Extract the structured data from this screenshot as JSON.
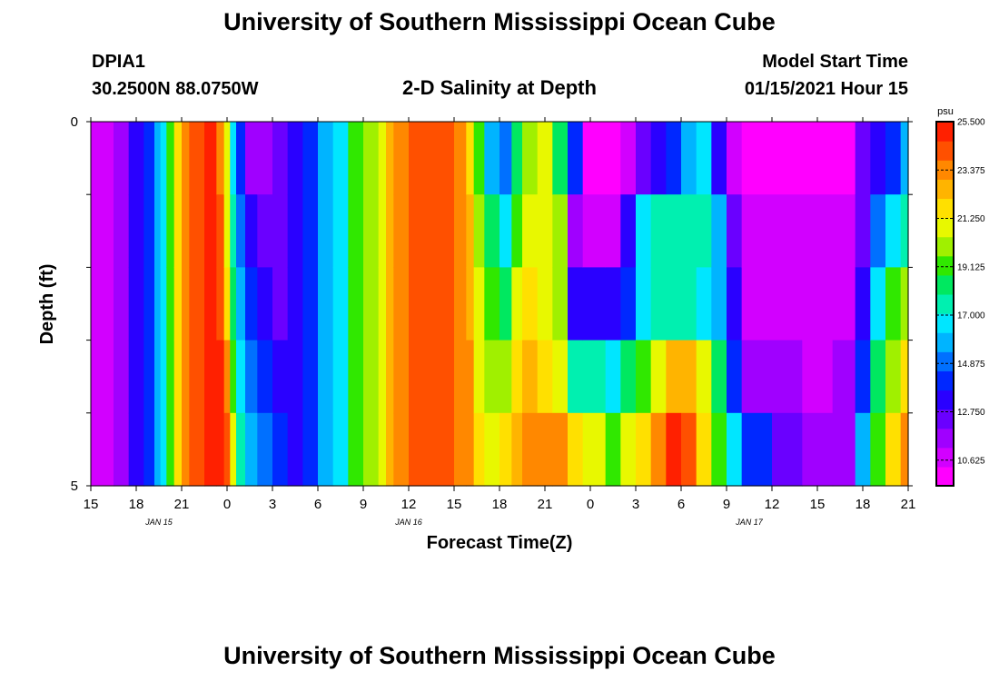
{
  "page": {
    "title_top": "University of Southern Mississippi Ocean Cube",
    "title_bottom": "University of Southern Mississippi Ocean Cube",
    "station_id": "DPIA1",
    "station_coords": "30.2500N 88.0750W",
    "model_label": "Model Start Time",
    "model_time": "01/15/2021 Hour 15"
  },
  "colors": {
    "palette": [
      "#ff00ff",
      "#d200ff",
      "#a000ff",
      "#6a00ff",
      "#2a00ff",
      "#0028ff",
      "#0070ff",
      "#00b4ff",
      "#00e6ff",
      "#00f0b0",
      "#00e860",
      "#30e800",
      "#a0f000",
      "#e8f800",
      "#ffe000",
      "#ffb400",
      "#ff8800",
      "#ff5000",
      "#ff2000"
    ]
  },
  "chart_data": {
    "type": "heatmap",
    "title": "2-D Salinity at Depth",
    "xlabel": "Forecast Time(Z)",
    "ylabel": "Depth (ft)",
    "x_unit": "hours since 01/15/2021 15Z",
    "x_range": [
      0,
      54
    ],
    "ylim": [
      0,
      5
    ],
    "y_ticks": [
      "0",
      "5"
    ],
    "x_ticks": [
      "15",
      "18",
      "21",
      "0",
      "3",
      "6",
      "9",
      "12",
      "15",
      "18",
      "21",
      "0",
      "3",
      "6",
      "9",
      "12",
      "15",
      "18",
      "21"
    ],
    "date_labels": [
      {
        "label": "JAN 15",
        "hour": 4.5
      },
      {
        "label": "JAN 16",
        "hour": 21
      },
      {
        "label": "JAN 17",
        "hour": 43.5
      }
    ],
    "colorbar": {
      "unit": "psu",
      "min": 9.5,
      "max": 25.5,
      "labels": [
        "25.500",
        "23.375",
        "21.250",
        "19.125",
        "17.000",
        "14.875",
        "12.750",
        "10.625"
      ]
    },
    "depth_bands": [
      0,
      1,
      2,
      3,
      4,
      5
    ],
    "columns": [
      {
        "x": 0,
        "v": [
          10.5,
          10.5,
          10.5,
          10.5,
          10.5
        ]
      },
      {
        "x": 1.5,
        "v": [
          11.5,
          11.5,
          11.5,
          11.5,
          11.5
        ]
      },
      {
        "x": 2.5,
        "v": [
          13.5,
          13.5,
          13.5,
          13.5,
          13.5
        ]
      },
      {
        "x": 3.5,
        "v": [
          14.2,
          14.2,
          14.2,
          14.2,
          14.2
        ]
      },
      {
        "x": 4.2,
        "v": [
          15.5,
          15.5,
          15.5,
          15.5,
          15.5
        ]
      },
      {
        "x": 4.6,
        "v": [
          17.0,
          17.0,
          17.0,
          17.0,
          17.0
        ]
      },
      {
        "x": 5.0,
        "v": [
          19.5,
          19.5,
          19.5,
          19.5,
          19.5
        ]
      },
      {
        "x": 5.5,
        "v": [
          21.5,
          21.5,
          21.5,
          21.5,
          21.5
        ]
      },
      {
        "x": 6.0,
        "v": [
          23.0,
          23.0,
          23.0,
          23.0,
          23.0
        ]
      },
      {
        "x": 6.5,
        "v": [
          24.5,
          24.5,
          24.5,
          24.5,
          24.5
        ]
      },
      {
        "x": 7.5,
        "v": [
          25.3,
          25.3,
          25.3,
          25.3,
          25.3
        ]
      },
      {
        "x": 8.3,
        "v": [
          23.5,
          24.0,
          24.5,
          25.0,
          25.3
        ]
      },
      {
        "x": 8.8,
        "v": [
          20.5,
          21.0,
          22.0,
          23.0,
          24.0
        ]
      },
      {
        "x": 9.2,
        "v": [
          16.5,
          17.5,
          18.5,
          19.5,
          20.5
        ]
      },
      {
        "x": 9.6,
        "v": [
          14.0,
          15.0,
          16.0,
          17.0,
          17.5
        ]
      },
      {
        "x": 10.2,
        "v": [
          12.0,
          13.5,
          14.5,
          15.0,
          16.0
        ]
      },
      {
        "x": 11.0,
        "v": [
          11.5,
          12.5,
          13.0,
          14.0,
          15.0
        ]
      },
      {
        "x": 12.0,
        "v": [
          12.5,
          12.5,
          12.5,
          13.5,
          14.0
        ]
      },
      {
        "x": 13.0,
        "v": [
          13.0,
          13.0,
          13.0,
          13.2,
          13.5
        ]
      },
      {
        "x": 14.0,
        "v": [
          14.2,
          14.2,
          14.2,
          14.2,
          14.2
        ]
      },
      {
        "x": 15.0,
        "v": [
          15.5,
          15.5,
          15.5,
          15.5,
          15.5
        ]
      },
      {
        "x": 16.0,
        "v": [
          17.0,
          17.0,
          17.0,
          17.0,
          17.0
        ]
      },
      {
        "x": 17.0,
        "v": [
          18.8,
          18.8,
          18.8,
          18.8,
          18.8
        ]
      },
      {
        "x": 18.0,
        "v": [
          19.8,
          19.8,
          19.8,
          19.8,
          19.8
        ]
      },
      {
        "x": 19.0,
        "v": [
          21.0,
          21.0,
          21.0,
          21.0,
          21.0
        ]
      },
      {
        "x": 19.5,
        "v": [
          22.2,
          22.2,
          22.2,
          22.2,
          22.2
        ]
      },
      {
        "x": 20.0,
        "v": [
          23.3,
          23.3,
          23.3,
          23.3,
          23.3
        ]
      },
      {
        "x": 21.0,
        "v": [
          24.0,
          24.0,
          24.0,
          24.0,
          24.0
        ]
      },
      {
        "x": 24.0,
        "v": [
          23.8,
          23.8,
          23.8,
          23.8,
          23.8
        ]
      },
      {
        "x": 24.8,
        "v": [
          22.0,
          22.5,
          22.8,
          23.0,
          23.5
        ]
      },
      {
        "x": 25.3,
        "v": [
          19.0,
          20.0,
          20.5,
          21.0,
          21.5
        ]
      },
      {
        "x": 26.0,
        "v": [
          16.0,
          18.0,
          19.5,
          20.0,
          20.8
        ]
      },
      {
        "x": 27.0,
        "v": [
          15.0,
          17.0,
          18.5,
          20.0,
          21.5
        ]
      },
      {
        "x": 27.8,
        "v": [
          18.5,
          19.5,
          20.5,
          21.5,
          22.5
        ]
      },
      {
        "x": 28.5,
        "v": [
          20.0,
          20.8,
          21.5,
          22.5,
          23.5
        ]
      },
      {
        "x": 29.5,
        "v": [
          20.5,
          21.0,
          21.0,
          22.0,
          23.5
        ]
      },
      {
        "x": 30.5,
        "v": [
          18.5,
          20.0,
          20.0,
          21.0,
          23.5
        ]
      },
      {
        "x": 31.5,
        "v": [
          14.0,
          11.5,
          13.0,
          17.5,
          22.0
        ]
      },
      {
        "x": 32.5,
        "v": [
          10.0,
          11.0,
          13.0,
          17.5,
          20.5
        ]
      },
      {
        "x": 34.0,
        "v": [
          10.0,
          11.0,
          13.0,
          17.0,
          19.5
        ]
      },
      {
        "x": 35.0,
        "v": [
          11.0,
          13.5,
          14.5,
          18.0,
          20.5
        ]
      },
      {
        "x": 36.0,
        "v": [
          12.5,
          16.5,
          17.0,
          19.5,
          22.0
        ]
      },
      {
        "x": 37.0,
        "v": [
          13.5,
          17.5,
          17.5,
          21.0,
          23.5
        ]
      },
      {
        "x": 38.0,
        "v": [
          14.0,
          17.5,
          17.5,
          22.5,
          25.0
        ]
      },
      {
        "x": 39.0,
        "v": [
          15.5,
          17.5,
          17.5,
          22.5,
          24.0
        ]
      },
      {
        "x": 40.0,
        "v": [
          17.0,
          17.5,
          17.0,
          20.5,
          22.0
        ]
      },
      {
        "x": 41.0,
        "v": [
          13.5,
          15.5,
          16.0,
          18.5,
          19.5
        ]
      },
      {
        "x": 42.0,
        "v": [
          11.0,
          12.5,
          13.0,
          14.5,
          17.0
        ]
      },
      {
        "x": 43.0,
        "v": [
          10.3,
          10.8,
          11.0,
          12.0,
          14.0
        ]
      },
      {
        "x": 45.0,
        "v": [
          10.0,
          10.5,
          10.8,
          11.5,
          12.5
        ]
      },
      {
        "x": 47.0,
        "v": [
          10.0,
          10.5,
          10.8,
          11.0,
          11.5
        ]
      },
      {
        "x": 49.0,
        "v": [
          10.3,
          10.8,
          11.0,
          11.5,
          12.0
        ]
      },
      {
        "x": 50.5,
        "v": [
          12.5,
          12.5,
          13.5,
          14.5,
          16.0
        ]
      },
      {
        "x": 51.5,
        "v": [
          13.0,
          15.0,
          17.0,
          18.5,
          19.5
        ]
      },
      {
        "x": 52.5,
        "v": [
          14.0,
          16.5,
          19.0,
          20.0,
          21.5
        ]
      },
      {
        "x": 53.5,
        "v": [
          15.5,
          17.5,
          20.0,
          21.5,
          23.0
        ]
      }
    ]
  }
}
